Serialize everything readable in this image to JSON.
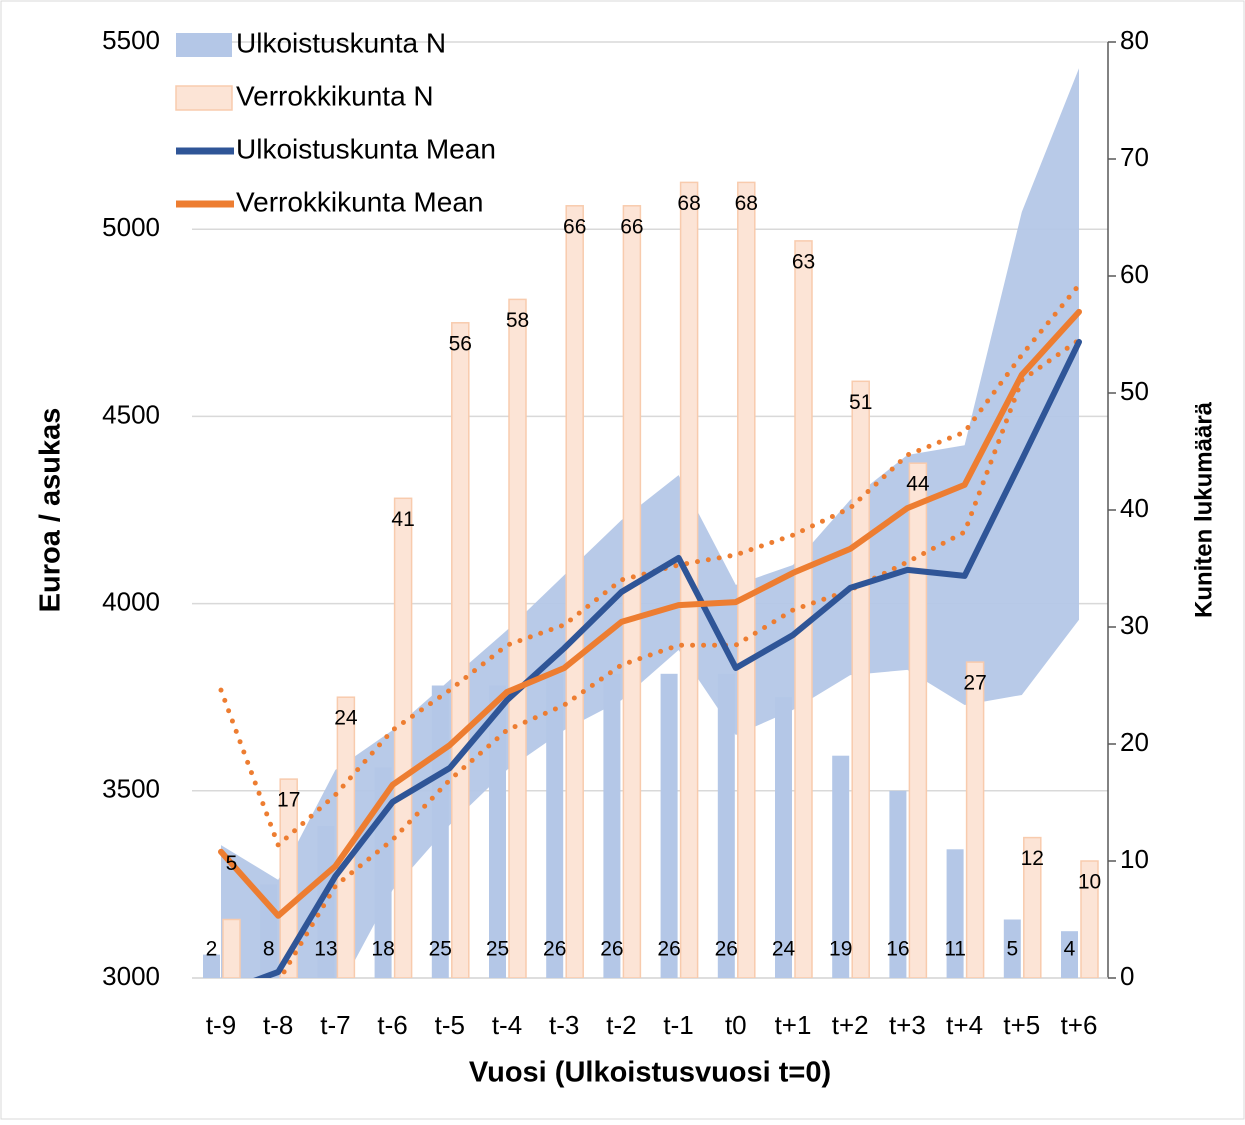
{
  "chart_data": {
    "type": "combo",
    "x_label": "Vuosi (Ulkoistusvuosi t=0)",
    "y_label": "Euroa / asukas",
    "y2_label": "Kuniten lukumäärä",
    "categories": [
      "t-9",
      "t-8",
      "t-7",
      "t-6",
      "t-5",
      "t-4",
      "t-3",
      "t-2",
      "t-1",
      "t0",
      "t+1",
      "t+2",
      "t+3",
      "t+4",
      "t+5",
      "t+6"
    ],
    "ylim": [
      3000,
      5500
    ],
    "yticks": [
      3000,
      3500,
      4000,
      4500,
      5000,
      5500
    ],
    "y2lim": [
      0,
      80
    ],
    "y2ticks": [
      0,
      10,
      20,
      30,
      40,
      50,
      60,
      70,
      80
    ],
    "grid": true,
    "legend": "top-left",
    "series": [
      {
        "name": "Ulkoistuskunta N",
        "kind": "bar",
        "axis": "y2",
        "color": "#b4c7e7",
        "values": [
          2,
          8,
          13,
          18,
          25,
          25,
          26,
          26,
          26,
          26,
          24,
          19,
          16,
          11,
          5,
          4
        ]
      },
      {
        "name": "Verrokkikunta N",
        "kind": "bar",
        "axis": "y2",
        "color": "#fce4d6",
        "edge": "#f8cbad",
        "values": [
          5,
          17,
          24,
          41,
          56,
          58,
          66,
          66,
          68,
          68,
          63,
          51,
          44,
          27,
          12,
          10
        ]
      },
      {
        "name": "Ulkoistuskunta Mean",
        "kind": "line",
        "color": "#2f5597",
        "values": [
          2960,
          3016,
          3272,
          3470,
          3561,
          3742,
          3881,
          4031,
          4122,
          3828,
          3916,
          4042,
          4090,
          4074,
          4384,
          4699
        ]
      },
      {
        "name": "Verrokkikunta Mean",
        "kind": "line",
        "color": "#ed7d31",
        "values": [
          3337,
          3166,
          3299,
          3516,
          3622,
          3764,
          3828,
          3951,
          3996,
          4004,
          4082,
          4146,
          4255,
          4317,
          4611,
          4779
        ]
      },
      {
        "kind": "band",
        "color": "#b4c7e7",
        "lower": [
          2560,
          2720,
          2950,
          3235,
          3409,
          3556,
          3662,
          3742,
          3876,
          3649,
          3716,
          3809,
          3823,
          3729,
          3756,
          3957
        ],
        "upper": [
          3355,
          3262,
          3556,
          3662,
          3796,
          3929,
          4076,
          4223,
          4343,
          4050,
          4103,
          4277,
          4397,
          4423,
          5046,
          5430
        ]
      },
      {
        "kind": "dotted",
        "color": "#ed7d31",
        "values": [
          3769,
          3355,
          3489,
          3662,
          3769,
          3889,
          3943,
          4063,
          4103,
          4130,
          4183,
          4255,
          4397,
          4458,
          4664,
          4851
        ]
      },
      {
        "kind": "dotted",
        "color": "#ed7d31",
        "values": [
          2905,
          2990,
          3246,
          3369,
          3529,
          3662,
          3729,
          3836,
          3889,
          3889,
          3983,
          4036,
          4111,
          4191,
          4597,
          4704
        ]
      }
    ]
  }
}
